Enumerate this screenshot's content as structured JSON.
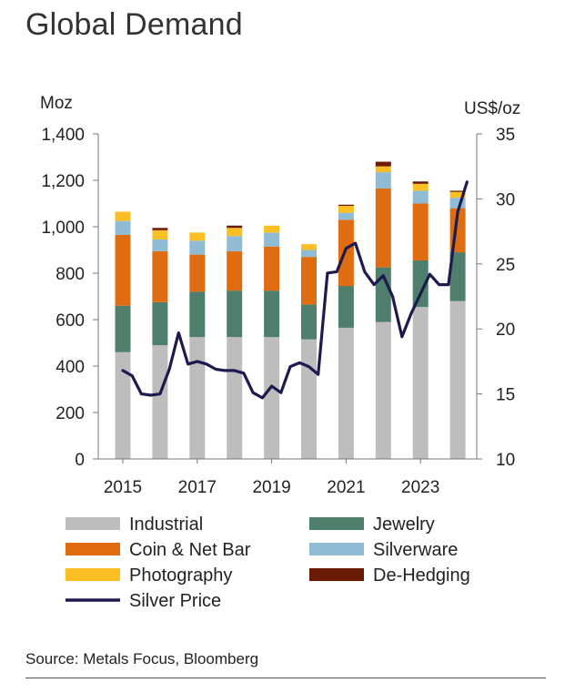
{
  "title": "Global Demand",
  "source": "Source: Metals Focus, Bloomberg",
  "chart_data": {
    "type": "bar",
    "stacked": true,
    "categories": [
      "2015",
      "2016",
      "2017",
      "2018",
      "2019",
      "2020",
      "2021",
      "2022",
      "2023",
      "2024"
    ],
    "x_tick_labels": [
      "2015",
      "2017",
      "2019",
      "2021",
      "2023"
    ],
    "left_axis": {
      "unit": "Moz",
      "ylim": [
        0,
        1400
      ],
      "ticks": [
        "0",
        "200",
        "400",
        "600",
        "800",
        "1,000",
        "1,200",
        "1,400"
      ]
    },
    "right_axis": {
      "unit": "US$/oz",
      "ylim": [
        10,
        35
      ],
      "ticks": [
        "10",
        "15",
        "20",
        "25",
        "30",
        "35"
      ]
    },
    "series": [
      {
        "name": "Industrial",
        "color": "#bdbdbd",
        "values": [
          460,
          490,
          525,
          525,
          525,
          515,
          565,
          590,
          655,
          680
        ]
      },
      {
        "name": "Jewelry",
        "color": "#4e7f6c",
        "values": [
          200,
          185,
          195,
          200,
          200,
          150,
          180,
          235,
          200,
          210
        ]
      },
      {
        "name": "Coin & Net Bar",
        "color": "#e06c12",
        "values": [
          305,
          220,
          160,
          170,
          190,
          205,
          285,
          340,
          245,
          190
        ]
      },
      {
        "name": "Silverware",
        "color": "#8fbcd4",
        "values": [
          60,
          50,
          60,
          65,
          60,
          30,
          30,
          70,
          55,
          45
        ]
      },
      {
        "name": "Photography",
        "color": "#fbbf24",
        "values": [
          40,
          40,
          35,
          35,
          30,
          25,
          30,
          25,
          30,
          25
        ]
      },
      {
        "name": "De-Hedging",
        "color": "#6b1a06",
        "values": [
          0,
          10,
          0,
          10,
          0,
          0,
          5,
          20,
          10,
          5
        ]
      }
    ],
    "line_series": {
      "name": "Silver Price",
      "axis": "right",
      "color": "#1d1a4f",
      "x": [
        2015.0,
        2015.25,
        2015.5,
        2015.75,
        2016.0,
        2016.25,
        2016.5,
        2016.75,
        2017.0,
        2017.25,
        2017.5,
        2017.75,
        2018.0,
        2018.25,
        2018.5,
        2018.75,
        2019.0,
        2019.25,
        2019.5,
        2019.75,
        2020.0,
        2020.25,
        2020.5,
        2020.75,
        2021.0,
        2021.25,
        2021.5,
        2021.75,
        2022.0,
        2022.25,
        2022.5,
        2022.75,
        2023.0,
        2023.25,
        2023.5,
        2023.75,
        2024.0,
        2024.25
      ],
      "values": [
        16.8,
        16.4,
        15.0,
        14.9,
        15.0,
        16.9,
        19.7,
        17.3,
        17.5,
        17.3,
        16.9,
        16.8,
        16.8,
        16.6,
        15.1,
        14.7,
        15.6,
        15.1,
        17.1,
        17.4,
        17.1,
        16.5,
        24.3,
        24.4,
        26.2,
        26.6,
        24.4,
        23.4,
        24.1,
        22.5,
        19.4,
        21.2,
        22.7,
        24.2,
        23.4,
        23.4,
        29.0,
        31.3
      ]
    },
    "legend": [
      "Industrial",
      "Jewelry",
      "Coin & Net Bar",
      "Silverware",
      "Photography",
      "De-Hedging",
      "Silver Price"
    ],
    "legend_position": "bottom",
    "grid": false
  }
}
